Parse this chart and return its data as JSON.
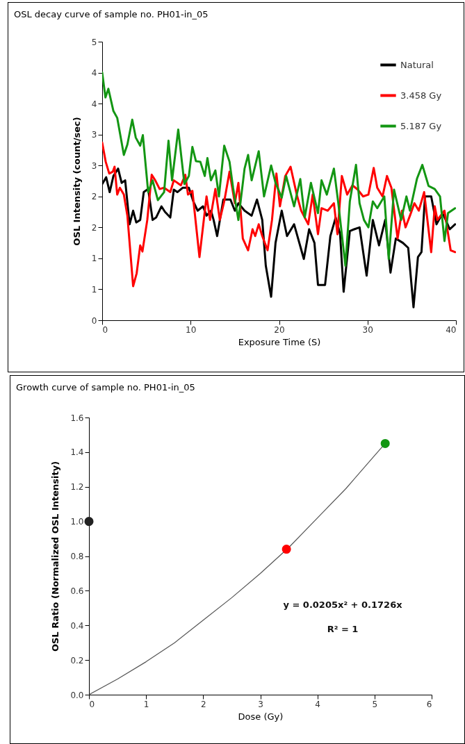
{
  "chart_data": [
    {
      "type": "line",
      "title": "OSL decay curve of sample no. PH01-in_05",
      "xlabel": "Exposure Time (S)",
      "ylabel": "OSL Intensity (count/sec)",
      "xlim": [
        0,
        40
      ],
      "xticks": [
        0,
        10,
        20,
        30,
        40
      ],
      "ylim": [
        0,
        4.5
      ],
      "yticks": [
        {
          "value": 0,
          "label": "0"
        },
        {
          "value": 0.5,
          "label": "1"
        },
        {
          "value": 1,
          "label": "1"
        },
        {
          "value": 1.5,
          "label": "2"
        },
        {
          "value": 2,
          "label": "2"
        },
        {
          "value": 2.5,
          "label": "3"
        },
        {
          "value": 3,
          "label": "3"
        },
        {
          "value": 3.5,
          "label": "4"
        },
        {
          "value": 4,
          "label": "4"
        },
        {
          "value": 4.5,
          "label": "5"
        }
      ],
      "legend": "top right",
      "line_style": "solid",
      "marker": "none",
      "series": [
        {
          "name": "Natural",
          "color": "#000000",
          "x": [
            0,
            0.45,
            0.85,
            1.27,
            1.8,
            2.2,
            2.6,
            3.1,
            3.5,
            3.85,
            4.3,
            4.7,
            5.2,
            5.7,
            6.1,
            6.7,
            7.1,
            7.7,
            8.1,
            8.5,
            9.1,
            9.8,
            10.3,
            10.8,
            11.4,
            11.8,
            12.3,
            12.6,
            13.0,
            13.7,
            14.5,
            15.0,
            15.4,
            16.1,
            16.9,
            17.5,
            18.1,
            18.5,
            19.1,
            19.6,
            20.3,
            20.9,
            21.7,
            22.8,
            23.4,
            24.0,
            24.4,
            25.2,
            25.8,
            26.4,
            26.9,
            27.3,
            28.0,
            28.5,
            29.1,
            29.9,
            30.6,
            31.3,
            32.0,
            32.6,
            33.2,
            34.0,
            34.6,
            35.2,
            35.7,
            36.1,
            36.5,
            37.2,
            37.8,
            38.5,
            39.3,
            39.9
          ],
          "values": [
            2.2,
            2.31,
            2.07,
            2.33,
            2.45,
            2.22,
            2.26,
            1.55,
            1.77,
            1.58,
            1.62,
            2.07,
            2.12,
            1.62,
            1.66,
            1.84,
            1.75,
            1.66,
            2.11,
            2.07,
            2.14,
            2.14,
            1.92,
            1.77,
            1.84,
            1.69,
            1.77,
            1.62,
            1.36,
            1.95,
            1.95,
            1.77,
            1.89,
            1.77,
            1.69,
            1.95,
            1.62,
            0.88,
            0.38,
            1.25,
            1.77,
            1.36,
            1.55,
            0.99,
            1.47,
            1.25,
            0.57,
            0.57,
            1.36,
            1.66,
            1.39,
            0.46,
            1.44,
            1.47,
            1.5,
            0.72,
            1.62,
            1.21,
            1.62,
            0.77,
            1.32,
            1.25,
            1.17,
            0.21,
            1.02,
            1.1,
            2.0,
            2.0,
            1.55,
            1.73,
            1.47,
            1.55
          ]
        },
        {
          "name": "3.458 Gy",
          "color": "#ff0000",
          "x": [
            0,
            0.4,
            0.8,
            1.2,
            1.4,
            1.7,
            2.0,
            2.45,
            2.85,
            3.5,
            3.9,
            4.3,
            4.55,
            5.1,
            5.6,
            6.0,
            6.5,
            7.0,
            7.7,
            8.1,
            8.9,
            9.4,
            9.7,
            10.2,
            11.0,
            11.8,
            12.2,
            12.8,
            13.3,
            13.8,
            14.4,
            15.0,
            15.4,
            15.9,
            16.5,
            17.0,
            17.3,
            17.7,
            18.1,
            18.7,
            19.2,
            19.7,
            20.1,
            20.7,
            21.3,
            22.0,
            22.5,
            23.3,
            23.8,
            24.4,
            24.8,
            25.5,
            26.2,
            26.6,
            27.1,
            27.7,
            28.3,
            28.9,
            29.5,
            30.1,
            30.7,
            31.1,
            31.7,
            32.2,
            32.7,
            33.4,
            33.9,
            34.3,
            34.8,
            35.3,
            35.8,
            36.4,
            37.2,
            37.6,
            37.9,
            38.7,
            39.4,
            39.9
          ],
          "values": [
            2.87,
            2.56,
            2.37,
            2.4,
            2.48,
            2.03,
            2.14,
            2.03,
            1.69,
            0.55,
            0.76,
            1.21,
            1.11,
            1.62,
            2.35,
            2.26,
            2.12,
            2.14,
            2.07,
            2.26,
            2.18,
            2.35,
            2.03,
            2.09,
            1.02,
            2.0,
            1.62,
            2.12,
            1.62,
            1.92,
            2.4,
            1.89,
            2.22,
            1.32,
            1.13,
            1.47,
            1.36,
            1.55,
            1.36,
            1.13,
            1.62,
            2.37,
            1.84,
            2.33,
            2.48,
            2.03,
            1.77,
            1.55,
            2.03,
            1.39,
            1.81,
            1.77,
            1.89,
            1.39,
            2.33,
            2.03,
            2.18,
            2.11,
            2.0,
            2.03,
            2.46,
            2.14,
            2.0,
            2.33,
            2.14,
            1.32,
            1.77,
            1.5,
            1.69,
            1.89,
            1.77,
            2.07,
            1.1,
            1.84,
            1.62,
            1.77,
            1.13,
            1.1
          ]
        },
        {
          "name": "5.187 Gy",
          "color": "#139613",
          "x": [
            0,
            0.37,
            0.7,
            1.27,
            1.7,
            2.45,
            2.85,
            3.4,
            3.8,
            4.3,
            4.6,
            5.2,
            5.7,
            6.3,
            7.0,
            7.5,
            7.9,
            8.6,
            9.3,
            9.8,
            10.2,
            10.6,
            11.1,
            11.6,
            11.9,
            12.3,
            12.8,
            13.2,
            13.8,
            14.4,
            14.8,
            15.4,
            16.1,
            16.5,
            16.9,
            17.7,
            18.3,
            19.1,
            19.6,
            20.3,
            20.8,
            21.7,
            22.4,
            22.9,
            23.6,
            24.4,
            24.8,
            25.4,
            26.2,
            26.7,
            27.5,
            28.0,
            28.7,
            29.1,
            29.6,
            30.1,
            30.6,
            31.1,
            31.9,
            32.4,
            33.0,
            33.8,
            34.4,
            34.8,
            35.6,
            36.2,
            36.9,
            37.6,
            38.2,
            38.7,
            39.1,
            39.9
          ],
          "values": [
            4.0,
            3.6,
            3.74,
            3.38,
            3.27,
            2.67,
            2.84,
            3.24,
            2.95,
            2.82,
            2.99,
            2.07,
            2.26,
            1.94,
            2.07,
            2.9,
            2.26,
            3.08,
            2.2,
            2.33,
            2.8,
            2.57,
            2.56,
            2.33,
            2.62,
            2.26,
            2.42,
            2.0,
            2.82,
            2.56,
            2.14,
            1.62,
            2.45,
            2.67,
            2.26,
            2.73,
            2.0,
            2.5,
            2.22,
            1.98,
            2.33,
            1.84,
            2.28,
            1.66,
            2.22,
            1.73,
            2.26,
            2.03,
            2.45,
            1.89,
            0.88,
            1.92,
            2.51,
            1.89,
            1.62,
            1.5,
            1.92,
            1.81,
            2.0,
            0.99,
            2.11,
            1.62,
            2.0,
            1.77,
            2.29,
            2.51,
            2.17,
            2.12,
            2.0,
            1.28,
            1.73,
            1.81
          ]
        }
      ]
    },
    {
      "type": "scatter",
      "title": "Growth curve of sample no. PH01-in_05",
      "xlabel": "Dose (Gy)",
      "ylabel": "OSL Ratio (Normalized OSL Intensity)",
      "xlim": [
        0,
        6
      ],
      "xticks": [
        0,
        1,
        2,
        3,
        4,
        5,
        6
      ],
      "ylim": [
        0,
        1.6
      ],
      "yticks": [
        {
          "value": 0,
          "label": "0.0"
        },
        0.2,
        0.4,
        0.6,
        0.8,
        {
          "value": 1,
          "label": "1.0"
        },
        1.2,
        1.4,
        1.6
      ],
      "marker": "circle",
      "annotations": [
        "y = 0.0205x² + 0.1726x",
        "R² = 1"
      ],
      "series": [
        {
          "type": "line",
          "marker": "none",
          "color": "#555555",
          "x": [
            0,
            0.5,
            1,
            1.5,
            2,
            2.5,
            3,
            3.5,
            4,
            4.5,
            5,
            5.187
          ],
          "values": [
            0,
            0.09,
            0.19,
            0.3,
            0.43,
            0.56,
            0.7,
            0.85,
            1.02,
            1.19,
            1.38,
            1.45
          ]
        },
        {
          "x": [
            0,
            3.458,
            5.187
          ],
          "values": [
            1.0,
            0.84,
            1.45
          ],
          "colors": [
            "#222222",
            "#ff0000",
            "#139613"
          ]
        }
      ]
    }
  ]
}
